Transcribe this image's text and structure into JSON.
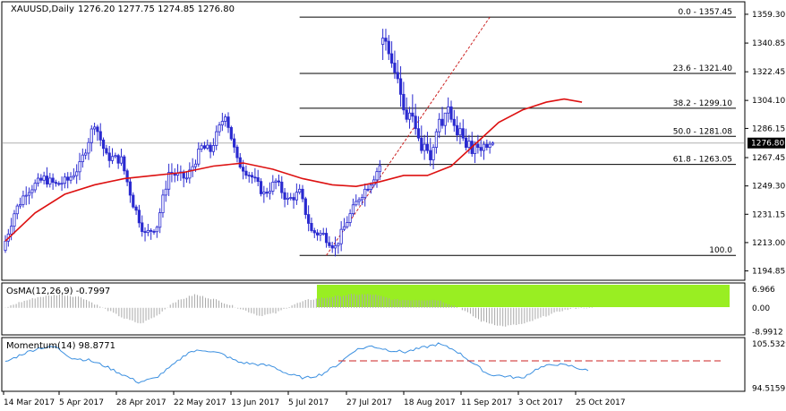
{
  "chart_data": [
    {
      "type": "candlestick",
      "title": "XAUUSD,Daily",
      "ohlc_label": "1276.20 1277.75 1274.85 1276.80",
      "current_price_label": "1276.80",
      "ylim": [
        1190,
        1365
      ],
      "y_ticks": [
        "1359.30",
        "1340.85",
        "1322.45",
        "1304.10",
        "1286.15",
        "1267.45",
        "1249.30",
        "1231.15",
        "1213.00",
        "1194.85"
      ],
      "x_ticks": [
        "14 Mar 2017",
        "5 Apr 2017",
        "28 Apr 2017",
        "22 May 2017",
        "13 Jun 2017",
        "5 Jul 2017",
        "27 Jul 2017",
        "18 Aug 2017",
        "11 Sep 2017",
        "3 Oct 2017",
        "25 Oct 2017"
      ],
      "candle_count": 165,
      "anchors": [
        [
          0,
          1208
        ],
        [
          4,
          1232
        ],
        [
          8,
          1246
        ],
        [
          14,
          1254
        ],
        [
          18,
          1250
        ],
        [
          22,
          1253
        ],
        [
          26,
          1262
        ],
        [
          31,
          1290
        ],
        [
          35,
          1268
        ],
        [
          40,
          1266
        ],
        [
          44,
          1238
        ],
        [
          48,
          1218
        ],
        [
          52,
          1224
        ],
        [
          56,
          1258
        ],
        [
          62,
          1254
        ],
        [
          67,
          1274
        ],
        [
          70,
          1272
        ],
        [
          75,
          1296
        ],
        [
          79,
          1265
        ],
        [
          84,
          1255
        ],
        [
          88,
          1244
        ],
        [
          92,
          1252
        ],
        [
          96,
          1240
        ],
        [
          100,
          1245
        ],
        [
          104,
          1220
        ],
        [
          108,
          1218
        ],
        [
          112,
          1210
        ],
        [
          116,
          1227
        ],
        [
          120,
          1242
        ],
        [
          124,
          1252
        ],
        [
          128,
          1266
        ],
        [
          132,
          1264
        ],
        [
          136,
          1262
        ],
        [
          140,
          1290
        ],
        [
          144,
          1286
        ],
        [
          148,
          1286
        ],
        [
          152,
          1296
        ],
        [
          156,
          1321
        ],
        [
          160,
          1330
        ],
        [
          163,
          1340
        ]
      ],
      "candles_second_half": [
        [
          1340,
          1350,
          1330,
          1344
        ],
        [
          1344,
          1350,
          1336,
          1342
        ],
        [
          1342,
          1346,
          1330,
          1334
        ],
        [
          1334,
          1342,
          1325,
          1328
        ],
        [
          1328,
          1336,
          1318,
          1322
        ],
        [
          1322,
          1330,
          1315,
          1318
        ],
        [
          1318,
          1326,
          1300,
          1308
        ],
        [
          1308,
          1316,
          1295,
          1298
        ],
        [
          1298,
          1306,
          1290,
          1292
        ],
        [
          1292,
          1300,
          1286,
          1296
        ],
        [
          1296,
          1308,
          1290,
          1294
        ],
        [
          1294,
          1302,
          1282,
          1286
        ],
        [
          1286,
          1294,
          1278,
          1280
        ],
        [
          1280,
          1288,
          1270,
          1272
        ],
        [
          1272,
          1282,
          1266,
          1276
        ],
        [
          1276,
          1284,
          1270,
          1272
        ],
        [
          1272,
          1280,
          1262,
          1266
        ],
        [
          1266,
          1276,
          1260,
          1274
        ],
        [
          1274,
          1286,
          1270,
          1284
        ],
        [
          1284,
          1296,
          1280,
          1292
        ],
        [
          1292,
          1300,
          1286,
          1288
        ],
        [
          1288,
          1296,
          1282,
          1296
        ],
        [
          1296,
          1306,
          1290,
          1300
        ],
        [
          1300,
          1304,
          1290,
          1292
        ],
        [
          1292,
          1298,
          1284,
          1288
        ],
        [
          1288,
          1294,
          1278,
          1282
        ],
        [
          1282,
          1290,
          1276,
          1286
        ],
        [
          1286,
          1292,
          1278,
          1280
        ],
        [
          1280,
          1286,
          1272,
          1274
        ],
        [
          1274,
          1282,
          1270,
          1278
        ],
        [
          1278,
          1284,
          1268,
          1270
        ],
        [
          1270,
          1278,
          1264,
          1276
        ],
        [
          1276,
          1282,
          1270,
          1274
        ],
        [
          1274,
          1280,
          1268,
          1272
        ],
        [
          1272,
          1278,
          1266,
          1276
        ],
        [
          1276,
          1279,
          1272,
          1274
        ],
        [
          1274,
          1278,
          1270,
          1276
        ],
        [
          1276,
          1277.75,
          1274.85,
          1276.8
        ]
      ],
      "ma_line": [
        [
          0,
          1214
        ],
        [
          10,
          1232
        ],
        [
          20,
          1244
        ],
        [
          30,
          1250
        ],
        [
          40,
          1254
        ],
        [
          50,
          1256
        ],
        [
          60,
          1258
        ],
        [
          70,
          1262
        ],
        [
          80,
          1264
        ],
        [
          90,
          1260
        ],
        [
          100,
          1254
        ],
        [
          110,
          1250
        ],
        [
          118,
          1249
        ],
        [
          126,
          1252
        ],
        [
          134,
          1256
        ],
        [
          142,
          1256
        ],
        [
          150,
          1262
        ],
        [
          158,
          1276
        ],
        [
          166,
          1290
        ],
        [
          174,
          1298
        ],
        [
          182,
          1303
        ],
        [
          188,
          1305
        ],
        [
          194,
          1303
        ]
      ],
      "fibonacci": {
        "levels": [
          {
            "label": "0.0 - 1357.45",
            "value": 1357.45
          },
          {
            "label": "23.6 - 1321.40",
            "value": 1321.4
          },
          {
            "label": "38.2 - 1299.10",
            "value": 1299.1
          },
          {
            "label": "50.0 - 1281.08",
            "value": 1281.08
          },
          {
            "label": "61.8 - 1263.05",
            "value": 1263.05
          },
          {
            "label": "100.0",
            "value": 1204.8
          }
        ]
      }
    },
    {
      "type": "histogram",
      "title": "OsMA(12,26,9) -0.7997",
      "ylim": [
        -9.5,
        8
      ],
      "y_ticks": [
        "6.966",
        "0.00",
        "-8.9912"
      ],
      "highlight_color": "#99ee22",
      "anchors": [
        [
          0,
          0
        ],
        [
          5,
          2
        ],
        [
          12,
          4
        ],
        [
          20,
          5
        ],
        [
          28,
          4
        ],
        [
          36,
          0
        ],
        [
          44,
          -4
        ],
        [
          50,
          -6
        ],
        [
          56,
          -3
        ],
        [
          62,
          2
        ],
        [
          70,
          5
        ],
        [
          78,
          3
        ],
        [
          86,
          0
        ],
        [
          94,
          -3
        ],
        [
          100,
          -2
        ],
        [
          106,
          1
        ],
        [
          112,
          3
        ],
        [
          120,
          4
        ],
        [
          128,
          5
        ],
        [
          136,
          5
        ],
        [
          144,
          3
        ],
        [
          152,
          3
        ],
        [
          160,
          3
        ],
        [
          168,
          0
        ],
        [
          176,
          -5
        ],
        [
          184,
          -7
        ],
        [
          192,
          -6
        ],
        [
          200,
          -3
        ],
        [
          206,
          -1
        ],
        [
          212,
          0
        ]
      ]
    },
    {
      "type": "line",
      "title": "Momentum(14) 98.8771",
      "ylim": [
        94.2,
        106.2
      ],
      "y_ticks": [
        "105.5329",
        "94.5159"
      ],
      "dashed_level_color": "#cc2222",
      "anchors": [
        [
          0,
          101
        ],
        [
          6,
          103
        ],
        [
          12,
          104.5
        ],
        [
          18,
          104.8
        ],
        [
          24,
          102
        ],
        [
          30,
          101.5
        ],
        [
          36,
          100
        ],
        [
          42,
          98
        ],
        [
          48,
          96
        ],
        [
          54,
          97
        ],
        [
          60,
          100
        ],
        [
          66,
          103.5
        ],
        [
          72,
          104
        ],
        [
          78,
          103
        ],
        [
          84,
          101
        ],
        [
          90,
          100.5
        ],
        [
          96,
          100
        ],
        [
          102,
          98
        ],
        [
          108,
          97
        ],
        [
          114,
          98
        ],
        [
          120,
          100.5
        ],
        [
          126,
          104
        ],
        [
          132,
          105
        ],
        [
          138,
          104
        ],
        [
          144,
          103.5
        ],
        [
          150,
          104.5
        ],
        [
          156,
          105.5
        ],
        [
          162,
          104
        ],
        [
          168,
          101
        ],
        [
          174,
          98
        ],
        [
          180,
          97.5
        ],
        [
          186,
          97
        ],
        [
          192,
          99.5
        ],
        [
          198,
          100.5
        ],
        [
          204,
          100
        ],
        [
          210,
          98.8
        ]
      ]
    }
  ]
}
